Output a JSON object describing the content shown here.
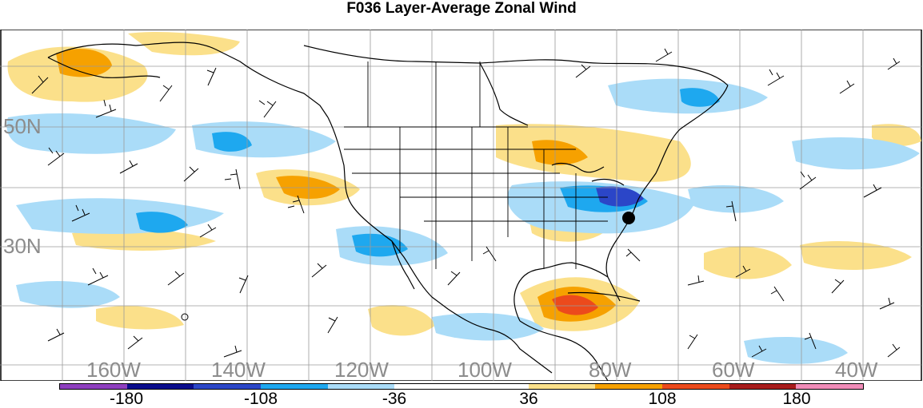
{
  "title": "F036 Layer-Average Zonal Wind",
  "map": {
    "lat_labels": [
      "50N",
      "30N"
    ],
    "lon_labels": [
      "160W",
      "140W",
      "120W",
      "100W",
      "80W",
      "60W",
      "40W"
    ],
    "marker": "storm-center-dot"
  },
  "colorbar": {
    "colors": [
      "#8e3fbf",
      "#0a0c8c",
      "#2b46c8",
      "#1ea8ef",
      "#aadcf8",
      "#ffffff",
      "#ffffff",
      "#fbe08a",
      "#f6a100",
      "#ec4a1c",
      "#a81c1c",
      "#f08cb8"
    ],
    "tick_labels": [
      "-180",
      "-108",
      "-36",
      "36",
      "108",
      "180"
    ]
  },
  "colors": {
    "coast": "#000000",
    "grid": "#9a9a9a",
    "light_blue": "#aadcf8",
    "blue": "#1ea8ef",
    "dark_blue": "#2b46c8",
    "yellow": "#fbe08a",
    "orange": "#f6a100",
    "red_orange": "#ec4a1c"
  }
}
